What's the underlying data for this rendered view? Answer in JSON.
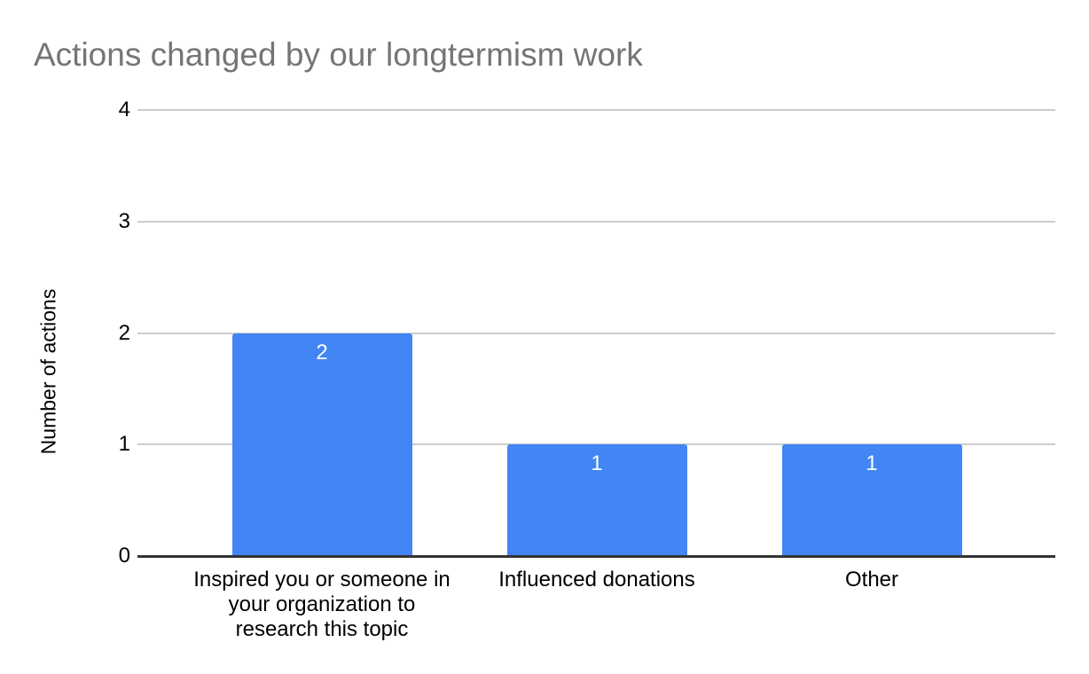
{
  "chart_data": {
    "type": "bar",
    "title": "Actions changed by our longtermism work",
    "xlabel": "",
    "ylabel": "Number of actions",
    "categories": [
      "Inspired you or someone in your organization to research this topic",
      "Influenced donations",
      "Other"
    ],
    "categories_wrapped": [
      [
        "Inspired you or someone in",
        "your organization to",
        "research this topic"
      ],
      [
        "Influenced donations"
      ],
      [
        "Other"
      ]
    ],
    "values": [
      2,
      1,
      1
    ],
    "data_labels": [
      "2",
      "1",
      "1"
    ],
    "yticks": [
      0,
      1,
      2,
      3,
      4
    ],
    "ylim": [
      0,
      4
    ],
    "grid": true,
    "legend": "none",
    "colors": {
      "bar": "#4285F4",
      "title": "#757575",
      "axis_text": "#000000",
      "gridline": "#cccccc",
      "axis_line": "#333333",
      "data_label": "#ffffff",
      "background": "#ffffff"
    }
  }
}
